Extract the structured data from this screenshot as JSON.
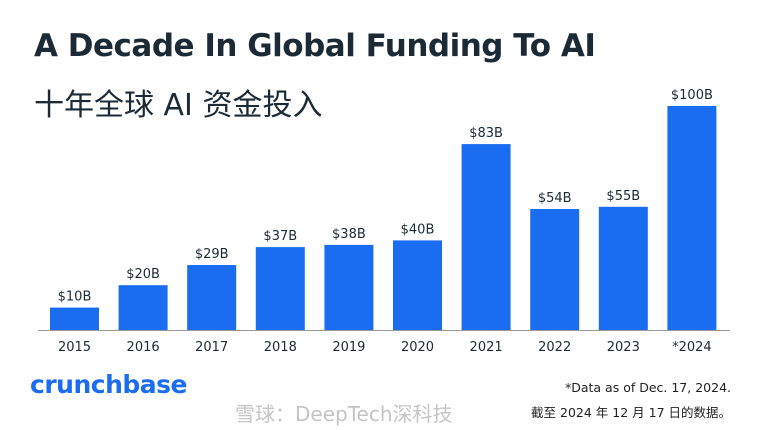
{
  "chart_data": {
    "type": "bar",
    "title": "A Decade In Global Funding To AI",
    "subtitle": "十年全球 AI 资金投入",
    "categories": [
      "2015",
      "2016",
      "2017",
      "2018",
      "2019",
      "2020",
      "2021",
      "2022",
      "2023",
      "*2024"
    ],
    "values": [
      10,
      20,
      29,
      37,
      38,
      40,
      83,
      54,
      55,
      100
    ],
    "data_labels": [
      "$10B",
      "$20B",
      "$29B",
      "$37B",
      "$38B",
      "$40B",
      "$83B",
      "$54B",
      "$55B",
      "$100B"
    ],
    "unit": "$B",
    "ylim": [
      0,
      100
    ],
    "grid": false,
    "bar_color": "#1a6cf0"
  },
  "footer": {
    "logo": "crunchbase",
    "note_en": "*Data as of Dec. 17, 2024.",
    "note_zh": "截至 2024 年 12 月 17 日的数据。",
    "watermark": "雪球：DeepTech深科技"
  }
}
